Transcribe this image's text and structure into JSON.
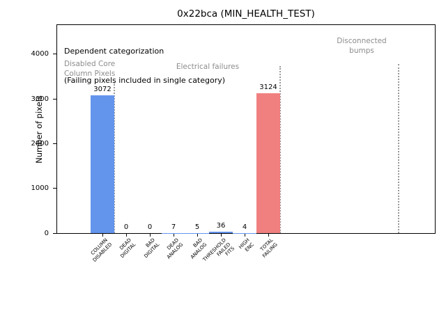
{
  "title": "0x22bca (MIN_HEALTH_TEST)",
  "axes": {
    "ylabel": "Number of pixels",
    "ytick_labels": [
      "0",
      "1000",
      "2000",
      "3000",
      "4000"
    ]
  },
  "annotations": {
    "dependent_line1": "Dependent categorization",
    "dependent_line2": "(Failing pixels included in single category)",
    "disabled_core": "Disabled Core\nColumn Pixels",
    "electrical": "Electrical failures",
    "disconnected": "Disconnected\nbumps"
  },
  "colors": {
    "bar_blue": "#6495ED",
    "bar_red": "#F08080",
    "annotation_gray": "#8c8c8c",
    "separator_gray": "#999999",
    "axis_black": "#000000"
  },
  "chart_data": {
    "type": "bar",
    "title": "0x22bca (MIN_HEALTH_TEST)",
    "xlabel": "",
    "ylabel": "Number of pixels",
    "categories": [
      "COLUMN\nDISABLED",
      "DEAD\nDIGITAL",
      "BAD\nDIGITAL",
      "DEAD\nANALOG",
      "BAD\nANALOG",
      "THRESHOLD\nFAILED\nFITS",
      "HIGH\nENC",
      "TOTAL\nFAILING"
    ],
    "values": [
      3072,
      0,
      0,
      7,
      5,
      36,
      4,
      3124
    ],
    "value_labels": [
      "3072",
      "0",
      "0",
      "7",
      "5",
      "36",
      "4",
      "3124"
    ],
    "bar_colors": [
      "#6495ED",
      "#6495ED",
      "#6495ED",
      "#6495ED",
      "#6495ED",
      "#6495ED",
      "#6495ED",
      "#F08080"
    ],
    "yticks": [
      0,
      1000,
      2000,
      3000,
      4000
    ],
    "ylim": [
      0,
      4650
    ],
    "grid": false,
    "legend": null,
    "group_separator_positions": [
      0.5,
      7.5,
      12.5
    ],
    "group_labels": [
      "Disabled Core\nColumn Pixels",
      "Electrical failures",
      "Disconnected\nbumps"
    ],
    "annotations_text": [
      "Dependent categorization",
      "(Failing pixels included in single category)"
    ]
  }
}
